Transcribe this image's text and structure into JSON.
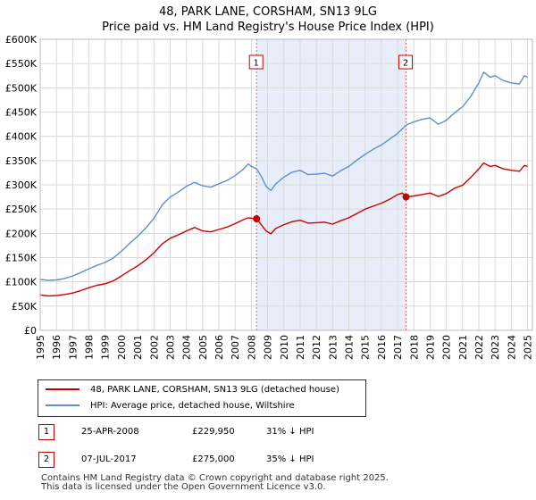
{
  "title_line1": "48, PARK LANE, CORSHAM, SN13 9LG",
  "title_line2": "Price paid vs. HM Land Registry's House Price Index (HPI)",
  "chart_data": {
    "type": "line",
    "xlim": [
      1995,
      2025.3
    ],
    "ylim": [
      0,
      600000
    ],
    "y_ticks": [
      0,
      50000,
      100000,
      150000,
      200000,
      250000,
      300000,
      350000,
      400000,
      450000,
      500000,
      550000,
      600000
    ],
    "y_tick_labels": [
      "£0",
      "£50K",
      "£100K",
      "£150K",
      "£200K",
      "£250K",
      "£300K",
      "£350K",
      "£400K",
      "£450K",
      "£500K",
      "£550K",
      "£600K"
    ],
    "x_ticks": [
      1995,
      1996,
      1997,
      1998,
      1999,
      2000,
      2001,
      2002,
      2003,
      2004,
      2005,
      2006,
      2007,
      2008,
      2009,
      2010,
      2011,
      2012,
      2013,
      2014,
      2015,
      2016,
      2017,
      2018,
      2019,
      2020,
      2021,
      2022,
      2023,
      2024,
      2025
    ],
    "x_tick_labels": [
      "1995",
      "1996",
      "1997",
      "1998",
      "1999",
      "2000",
      "2001",
      "2002",
      "2003",
      "2004",
      "2005",
      "2006",
      "2007",
      "2008",
      "2009",
      "2010",
      "2011",
      "2012",
      "2013",
      "2014",
      "2015",
      "2016",
      "2017",
      "2018",
      "2019",
      "2020",
      "2021",
      "2022",
      "2023",
      "2024",
      "2025"
    ],
    "grid": true,
    "shaded_range": [
      2008.32,
      2017.52
    ],
    "series": [
      {
        "name": "48, PARK LANE, CORSHAM, SN13 9LG (detached house)",
        "color": "#cc0000",
        "x": [
          1995.0,
          1995.5,
          1996.0,
          1996.5,
          1997.0,
          1997.5,
          1998.0,
          1998.5,
          1999.0,
          1999.5,
          2000.0,
          2000.5,
          2001.0,
          2001.5,
          2002.0,
          2002.5,
          2003.0,
          2003.5,
          2004.0,
          2004.5,
          2005.0,
          2005.5,
          2006.0,
          2006.5,
          2007.0,
          2007.5,
          2007.8,
          2008.32,
          2008.6,
          2008.9,
          2009.2,
          2009.5,
          2010.0,
          2010.5,
          2011.0,
          2011.5,
          2012.0,
          2012.5,
          2013.0,
          2013.5,
          2014.0,
          2014.5,
          2015.0,
          2015.5,
          2016.0,
          2016.5,
          2017.0,
          2017.3,
          2017.52,
          2018.0,
          2018.5,
          2019.0,
          2019.5,
          2020.0,
          2020.5,
          2021.0,
          2021.5,
          2022.0,
          2022.3,
          2022.7,
          2023.0,
          2023.5,
          2024.0,
          2024.5,
          2024.8,
          2025.0
        ],
        "values": [
          73000,
          71000,
          72000,
          74000,
          77000,
          82000,
          88000,
          93000,
          96000,
          102000,
          112000,
          123000,
          133000,
          145000,
          160000,
          178000,
          190000,
          197000,
          205000,
          212000,
          205000,
          203000,
          208000,
          213000,
          220000,
          228000,
          232000,
          229950,
          218000,
          205000,
          199000,
          210000,
          218000,
          224000,
          227000,
          221000,
          222000,
          223000,
          219000,
          226000,
          232000,
          241000,
          250000,
          256000,
          262000,
          270000,
          280000,
          283000,
          275000,
          277000,
          280000,
          283000,
          276000,
          282000,
          293000,
          299000,
          315000,
          333000,
          345000,
          338000,
          340000,
          333000,
          330000,
          328000,
          340000,
          338000
        ]
      },
      {
        "name": "HPI: Average price, detached house, Wiltshire",
        "color": "#5b8fd0",
        "x": [
          1995.0,
          1995.5,
          1996.0,
          1996.5,
          1997.0,
          1997.5,
          1998.0,
          1998.5,
          1999.0,
          1999.5,
          2000.0,
          2000.5,
          2001.0,
          2001.5,
          2002.0,
          2002.5,
          2003.0,
          2003.5,
          2004.0,
          2004.5,
          2005.0,
          2005.5,
          2006.0,
          2006.5,
          2007.0,
          2007.5,
          2007.8,
          2008.0,
          2008.32,
          2008.6,
          2008.9,
          2009.2,
          2009.5,
          2010.0,
          2010.5,
          2011.0,
          2011.5,
          2012.0,
          2012.5,
          2013.0,
          2013.5,
          2014.0,
          2014.5,
          2015.0,
          2015.5,
          2016.0,
          2016.5,
          2017.0,
          2017.52,
          2018.0,
          2018.5,
          2019.0,
          2019.5,
          2020.0,
          2020.5,
          2021.0,
          2021.5,
          2022.0,
          2022.3,
          2022.7,
          2023.0,
          2023.5,
          2024.0,
          2024.5,
          2024.8,
          2025.0
        ],
        "values": [
          105000,
          103000,
          104000,
          107000,
          112000,
          119000,
          127000,
          134000,
          140000,
          149000,
          163000,
          179000,
          194000,
          211000,
          231000,
          258000,
          275000,
          285000,
          297000,
          305000,
          298000,
          295000,
          302000,
          309000,
          319000,
          332000,
          343000,
          338000,
          333000,
          318000,
          297000,
          288000,
          302000,
          316000,
          326000,
          330000,
          321000,
          322000,
          324000,
          318000,
          329000,
          338000,
          351000,
          363000,
          373000,
          382000,
          394000,
          406000,
          423000,
          430000,
          435000,
          438000,
          425000,
          433000,
          448000,
          461000,
          482000,
          510000,
          532000,
          522000,
          525000,
          515000,
          510000,
          508000,
          525000,
          522000
        ]
      }
    ],
    "markers": [
      {
        "label": "1",
        "x": 2008.32,
        "value": 229950
      },
      {
        "label": "2",
        "x": 2017.52,
        "value": 275000
      }
    ]
  },
  "legend": {
    "items": [
      {
        "label": "48, PARK LANE, CORSHAM, SN13 9LG (detached house)",
        "color": "#cc0000"
      },
      {
        "label": "HPI: Average price, detached house, Wiltshire",
        "color": "#5b8fd0"
      }
    ]
  },
  "transactions": [
    {
      "num": "1",
      "date": "25-APR-2008",
      "price": "£229,950",
      "hpi": "31% ↓ HPI"
    },
    {
      "num": "2",
      "date": "07-JUL-2017",
      "price": "£275,000",
      "hpi": "35% ↓ HPI"
    }
  ],
  "footer_line1": "Contains HM Land Registry data © Crown copyright and database right 2025.",
  "footer_line2": "This data is licensed under the Open Government Licence v3.0."
}
